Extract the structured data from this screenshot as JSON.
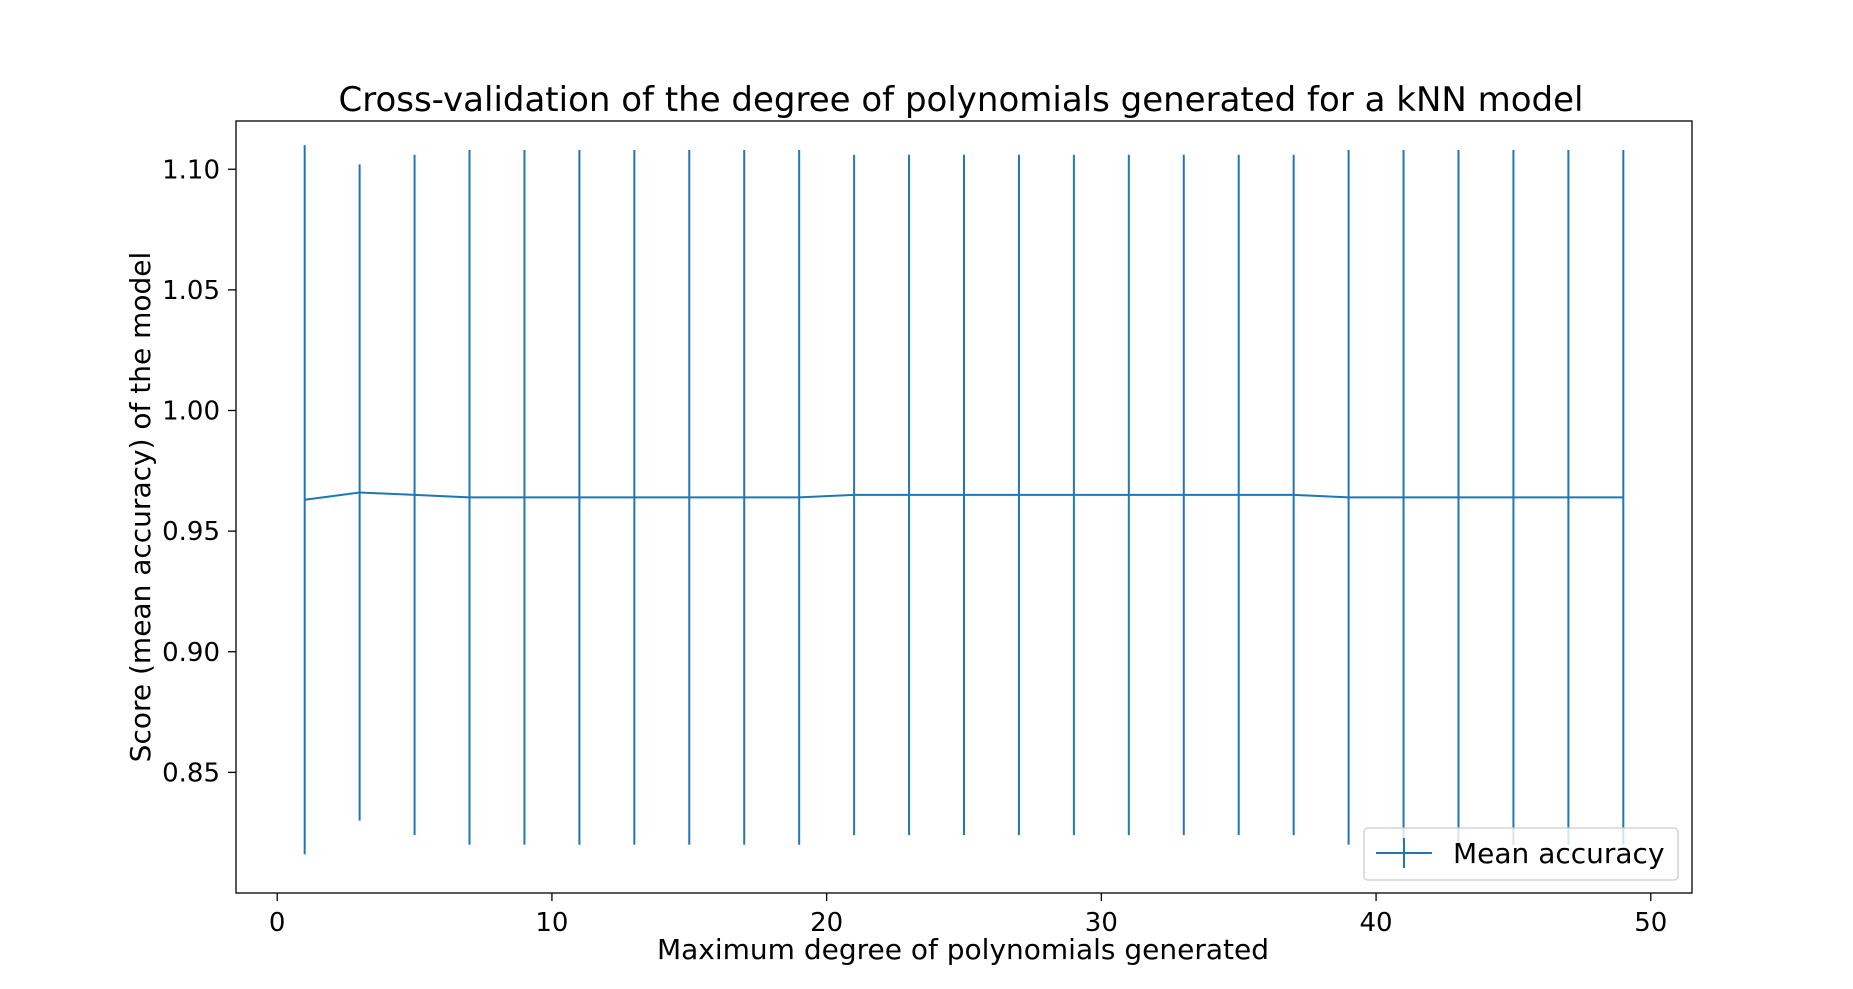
{
  "chart_data": {
    "type": "line",
    "title": "Cross-validation of the degree of polynomials generated for a kNN model",
    "xlabel": "Maximum degree of polynomials generated",
    "ylabel": "Score (mean accuracy) of the model",
    "xlim": [
      -1.5,
      51.5
    ],
    "ylim": [
      0.8,
      1.12
    ],
    "xticks": [
      0,
      10,
      20,
      30,
      40,
      50
    ],
    "xtick_labels": [
      "0",
      "10",
      "20",
      "30",
      "40",
      "50"
    ],
    "yticks": [
      0.85,
      0.9,
      0.95,
      1.0,
      1.05,
      1.1
    ],
    "ytick_labels": [
      "0.85",
      "0.90",
      "0.95",
      "1.00",
      "1.05",
      "1.10"
    ],
    "grid": false,
    "legend_position": "lower-right",
    "series": [
      {
        "name": "Mean accuracy",
        "color": "#1f77b4",
        "x": [
          1,
          3,
          5,
          7,
          9,
          11,
          13,
          15,
          17,
          19,
          21,
          23,
          25,
          27,
          29,
          31,
          33,
          35,
          37,
          39,
          41,
          43,
          45,
          47,
          49
        ],
        "y": [
          0.963,
          0.966,
          0.965,
          0.964,
          0.964,
          0.964,
          0.964,
          0.964,
          0.964,
          0.964,
          0.965,
          0.965,
          0.965,
          0.965,
          0.965,
          0.965,
          0.965,
          0.965,
          0.965,
          0.964,
          0.964,
          0.964,
          0.964,
          0.964,
          0.964
        ],
        "yerr": [
          0.147,
          0.136,
          0.141,
          0.144,
          0.144,
          0.144,
          0.144,
          0.144,
          0.144,
          0.144,
          0.141,
          0.141,
          0.141,
          0.141,
          0.141,
          0.141,
          0.141,
          0.141,
          0.141,
          0.144,
          0.144,
          0.144,
          0.144,
          0.144,
          0.144
        ]
      }
    ]
  }
}
